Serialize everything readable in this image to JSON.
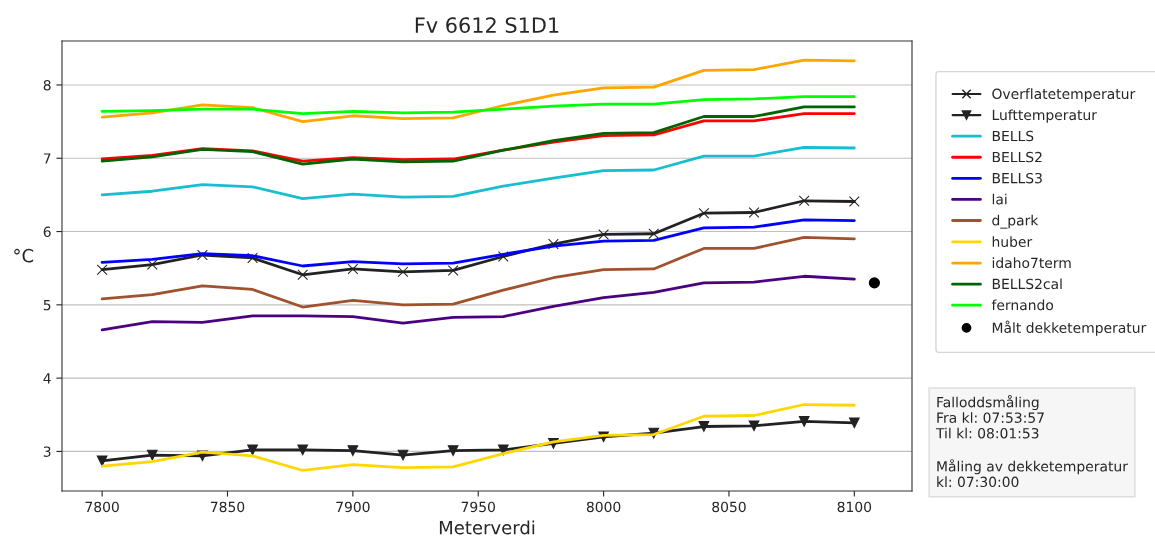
{
  "chart_data": {
    "type": "line",
    "title": "Fv 6612 S1D1",
    "xlabel": "Meterverdi",
    "ylabel": "°C",
    "x": [
      7800,
      7820,
      7840,
      7860,
      7880,
      7900,
      7920,
      7940,
      7960,
      7980,
      8000,
      8020,
      8040,
      8060,
      8080,
      8100
    ],
    "series": [
      {
        "name": "Overflatetemperatur",
        "color": "#222222",
        "marker": "cross",
        "values": [
          5.48,
          5.55,
          5.68,
          5.64,
          5.41,
          5.49,
          5.45,
          5.47,
          5.66,
          5.83,
          5.96,
          5.97,
          6.25,
          6.26,
          6.42,
          6.41
        ]
      },
      {
        "name": "Lufttemperatur",
        "color": "#222222",
        "marker": "triangle",
        "values": [
          2.87,
          2.95,
          2.94,
          3.02,
          3.02,
          3.01,
          2.95,
          3.01,
          3.02,
          3.11,
          3.2,
          3.25,
          3.34,
          3.35,
          3.41,
          3.39
        ]
      },
      {
        "name": "BELLS",
        "color": "#17becf",
        "values": [
          6.5,
          6.55,
          6.64,
          6.61,
          6.45,
          6.51,
          6.47,
          6.48,
          6.62,
          6.73,
          6.83,
          6.84,
          7.03,
          7.03,
          7.15,
          7.14
        ]
      },
      {
        "name": "BELLS2",
        "color": "#ff0000",
        "values": [
          6.99,
          7.04,
          7.13,
          7.1,
          6.96,
          7.01,
          6.98,
          6.99,
          7.11,
          7.22,
          7.31,
          7.32,
          7.51,
          7.51,
          7.61,
          7.61
        ]
      },
      {
        "name": "BELLS3",
        "color": "#0000ff",
        "values": [
          5.58,
          5.62,
          5.7,
          5.67,
          5.53,
          5.59,
          5.56,
          5.57,
          5.69,
          5.8,
          5.87,
          5.88,
          6.05,
          6.06,
          6.16,
          6.15
        ]
      },
      {
        "name": "lai",
        "color": "#4b0082",
        "values": [
          4.66,
          4.77,
          4.76,
          4.85,
          4.85,
          4.84,
          4.75,
          4.83,
          4.84,
          4.98,
          5.1,
          5.17,
          5.3,
          5.31,
          5.39,
          5.35
        ]
      },
      {
        "name": "d_park",
        "color": "#a0522d",
        "values": [
          5.08,
          5.14,
          5.26,
          5.21,
          4.97,
          5.06,
          5.0,
          5.01,
          5.2,
          5.37,
          5.48,
          5.49,
          5.77,
          5.77,
          5.92,
          5.9
        ]
      },
      {
        "name": "huber",
        "color": "#ffd700",
        "values": [
          2.8,
          2.86,
          2.99,
          2.94,
          2.74,
          2.82,
          2.78,
          2.79,
          2.97,
          3.13,
          3.22,
          3.23,
          3.48,
          3.49,
          3.64,
          3.63
        ]
      },
      {
        "name": "idaho7term",
        "color": "#ffa500",
        "values": [
          7.56,
          7.62,
          7.73,
          7.69,
          7.5,
          7.58,
          7.54,
          7.55,
          7.72,
          7.86,
          7.96,
          7.97,
          8.2,
          8.21,
          8.34,
          8.33
        ]
      },
      {
        "name": "BELLS2cal",
        "color": "#006400",
        "values": [
          6.96,
          7.02,
          7.12,
          7.09,
          6.92,
          6.99,
          6.95,
          6.96,
          7.11,
          7.24,
          7.34,
          7.35,
          7.57,
          7.57,
          7.7,
          7.7
        ]
      },
      {
        "name": "fernando",
        "color": "#00ff00",
        "values": [
          7.64,
          7.65,
          7.67,
          7.67,
          7.61,
          7.64,
          7.62,
          7.63,
          7.67,
          7.71,
          7.74,
          7.74,
          7.8,
          7.81,
          7.84,
          7.84
        ]
      },
      {
        "name": "Målt dekketemperatur",
        "color": "#000000",
        "type": "scatter",
        "marker": "circle",
        "x": [
          8108
        ],
        "values": [
          5.3
        ]
      }
    ],
    "xlim": [
      7784,
      8123
    ],
    "xticks": [
      7800,
      7850,
      7900,
      7950,
      8000,
      8050,
      8100
    ],
    "ylim": [
      2.46,
      8.6
    ],
    "yticks": [
      3,
      4,
      5,
      6,
      7,
      8
    ],
    "grid": "y",
    "legend": "right",
    "annotations": [
      "Falloddsmåling\nFra kl: 07:53:57\nTil kl: 08:01:53\n\nMåling av dekketemperatur\nkl: 07:30:00"
    ]
  }
}
